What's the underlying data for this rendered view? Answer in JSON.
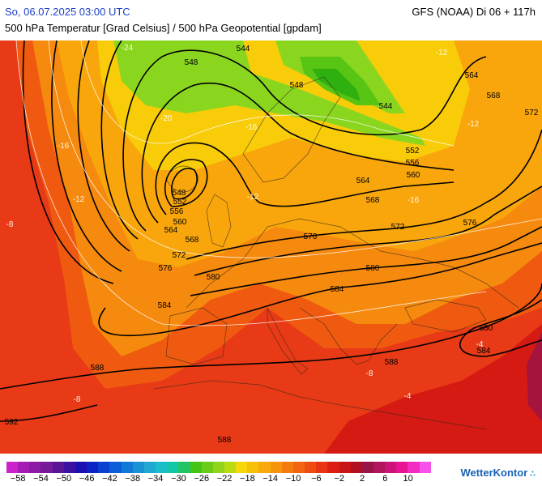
{
  "header": {
    "date_text": "So, 06.07.2025 03:00 UTC",
    "model_text": "GFS (NOAA) Di 06 + 117h",
    "subtitle": "500 hPa Temperatur [Grad Celsius] / 500 hPa Geopotential [gpdam]"
  },
  "map": {
    "colors": {
      "ocean_red": "#e83a16",
      "deep_red": "#d41a12",
      "orange_red": "#f05a10",
      "orange": "#f68a0e",
      "light_orange": "#f9a60c",
      "yellow": "#f8cc08",
      "light_green": "#8ad61e",
      "green": "#58c414",
      "dark_green": "#2eb010",
      "maroon": "#a4143c"
    },
    "contour_labels": [
      {
        "id": "548-north",
        "text": "548"
      },
      {
        "id": "544-north",
        "text": "544"
      },
      {
        "id": "548-scand",
        "text": "548"
      },
      {
        "id": "544-east",
        "text": "544"
      },
      {
        "id": "564-ne",
        "text": "564"
      },
      {
        "id": "568-ne",
        "text": "568"
      },
      {
        "id": "572-ne",
        "text": "572"
      },
      {
        "id": "552-east",
        "text": "552"
      },
      {
        "id": "556-east",
        "text": "556"
      },
      {
        "id": "560-east",
        "text": "560"
      },
      {
        "id": "564-mid",
        "text": "564"
      },
      {
        "id": "568-mid",
        "text": "568"
      },
      {
        "id": "572-mid",
        "text": "572"
      },
      {
        "id": "576-east",
        "text": "576"
      },
      {
        "id": "576-mid",
        "text": "576"
      },
      {
        "id": "548-west",
        "text": "548"
      },
      {
        "id": "552-west",
        "text": "552"
      },
      {
        "id": "556-west",
        "text": "556"
      },
      {
        "id": "560-west",
        "text": "560"
      },
      {
        "id": "564-west",
        "text": "564"
      },
      {
        "id": "568-west",
        "text": "568"
      },
      {
        "id": "572-west",
        "text": "572"
      },
      {
        "id": "576-west",
        "text": "576"
      },
      {
        "id": "580-west",
        "text": "580"
      },
      {
        "id": "580-east",
        "text": "580"
      },
      {
        "id": "584-west",
        "text": "584"
      },
      {
        "id": "584-mid",
        "text": "584"
      },
      {
        "id": "588-west",
        "text": "588"
      },
      {
        "id": "588-mid",
        "text": "588"
      },
      {
        "id": "588-south",
        "text": "588"
      },
      {
        "id": "592-sw",
        "text": "592"
      },
      {
        "id": "580-se",
        "text": "580"
      },
      {
        "id": "584-se",
        "text": "584"
      }
    ],
    "temperature_labels": [
      {
        "id": "t-24",
        "text": "-24"
      },
      {
        "id": "t-20",
        "text": "-20"
      },
      {
        "id": "t-16a",
        "text": "-16"
      },
      {
        "id": "t-12a",
        "text": "-12"
      },
      {
        "id": "t-12b",
        "text": "-12"
      },
      {
        "id": "t-12c",
        "text": "-12"
      },
      {
        "id": "t-12d",
        "text": "-12"
      },
      {
        "id": "t-16b",
        "text": "-16"
      },
      {
        "id": "t-8a",
        "text": "-8"
      },
      {
        "id": "t-8b",
        "text": "-8"
      },
      {
        "id": "t-8c",
        "text": "-8"
      },
      {
        "id": "t-4a",
        "text": "-4"
      },
      {
        "id": "t-4b",
        "text": "-4"
      },
      {
        "id": "t-16c",
        "text": "-16"
      }
    ]
  },
  "legend": {
    "colors": [
      "#cc22cc",
      "#a41cb4",
      "#8c1aa4",
      "#761a9a",
      "#5a1496",
      "#3c10a0",
      "#1a10b2",
      "#0c22c4",
      "#0a40d2",
      "#0c5ed8",
      "#1078d6",
      "#1892d2",
      "#20a8d2",
      "#1abec8",
      "#10c8a8",
      "#20c462",
      "#46c416",
      "#6acc16",
      "#92d41c",
      "#b8dc10",
      "#f6d80a",
      "#f8c00a",
      "#f8aa0c",
      "#f6940c",
      "#f47c0e",
      "#f26410",
      "#ee4c10",
      "#e83412",
      "#dc1e12",
      "#c81414",
      "#b01020",
      "#981444",
      "#b0145c",
      "#cc1478",
      "#e81494",
      "#f22cc2",
      "#f652ea"
    ],
    "labels": [
      "−58",
      "−54",
      "−50",
      "−46",
      "−42",
      "−38",
      "−34",
      "−30",
      "−26",
      "−22",
      "−18",
      "−14",
      "−10",
      "−6",
      "−2",
      "2",
      "6",
      "10"
    ]
  },
  "branding": {
    "logo_text": "WetterKontor"
  }
}
